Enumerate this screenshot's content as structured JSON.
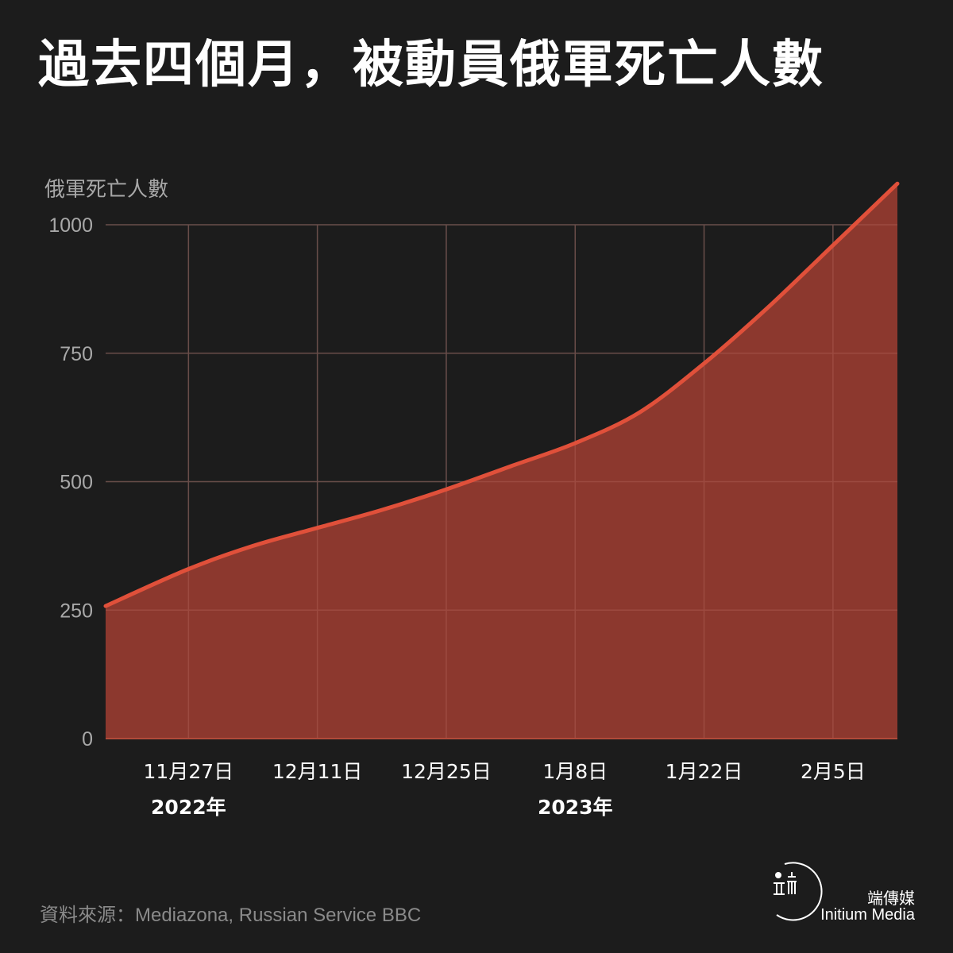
{
  "title": "過去四個月，被動員俄軍死亡人數",
  "source": "資料來源：Mediazona, Russian Service BBC",
  "brand": {
    "name_cn": "端傳媒",
    "name_en": "Initium Media"
  },
  "colors": {
    "background": "#1c1c1c",
    "line": "#e0503a",
    "area": "#913a2f",
    "grid": "#3e3e3e",
    "axis_text": "#a8a8a8"
  },
  "chart_data": {
    "type": "area",
    "title": "過去四個月，被動員俄軍死亡人數",
    "ylabel": "俄軍死亡人數",
    "xlabel": "",
    "ylim": [
      0,
      1000
    ],
    "yticks": [
      0,
      250,
      500,
      750,
      1000
    ],
    "xticks": [
      {
        "date": "2022-11-27",
        "label": "11月27日",
        "year_label": "2022年"
      },
      {
        "date": "2022-12-11",
        "label": "12月11日",
        "year_label": ""
      },
      {
        "date": "2022-12-25",
        "label": "12月25日",
        "year_label": ""
      },
      {
        "date": "2023-01-08",
        "label": "1月8日",
        "year_label": "2023年"
      },
      {
        "date": "2023-01-22",
        "label": "1月22日",
        "year_label": ""
      },
      {
        "date": "2023-02-05",
        "label": "2月5日",
        "year_label": ""
      }
    ],
    "grid": true,
    "series": [
      {
        "x": [
          "2022-11-18",
          "2022-11-27",
          "2022-12-04",
          "2022-12-11",
          "2022-12-18",
          "2022-12-25",
          "2023-01-01",
          "2023-01-08",
          "2023-01-15",
          "2023-01-22",
          "2023-01-29",
          "2023-02-05",
          "2023-02-12"
        ],
        "values": [
          258,
          330,
          375,
          410,
          445,
          485,
          530,
          575,
          635,
          730,
          840,
          960,
          1080
        ]
      }
    ]
  }
}
